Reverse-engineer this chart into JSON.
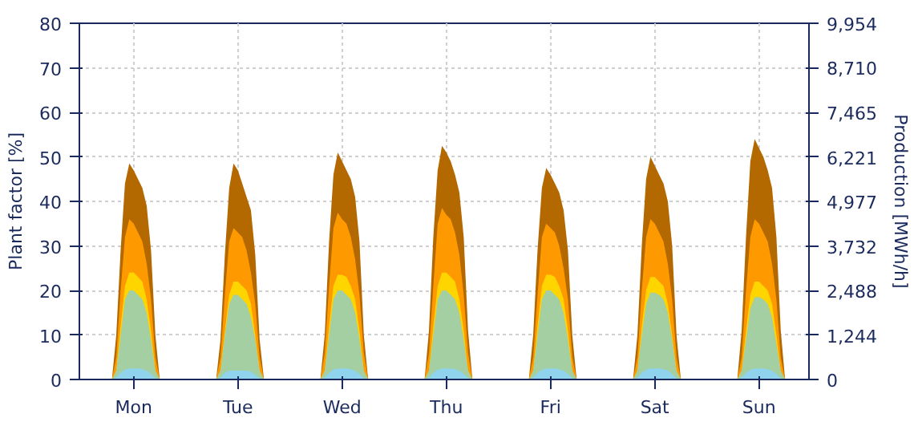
{
  "chart_data": {
    "type": "area",
    "ylabel": "Plant factor [%]",
    "y2label": "Production [MWh/h]",
    "categories": [
      null,
      null,
      null,
      null,
      null,
      null,
      null,
      null,
      null,
      null,
      null,
      null,
      "Mon",
      null,
      null,
      null,
      null,
      null,
      null,
      null,
      null,
      null,
      null,
      null,
      null,
      null,
      null,
      null,
      null,
      null,
      null,
      null,
      null,
      null,
      null,
      null,
      "Tue",
      null,
      null,
      null,
      null,
      null,
      null,
      null,
      null,
      null,
      null,
      null,
      null,
      null,
      null,
      null,
      null,
      null,
      null,
      null,
      null,
      null,
      null,
      null,
      "Wed",
      null,
      null,
      null,
      null,
      null,
      null,
      null,
      null,
      null,
      null,
      null,
      null,
      null,
      null,
      null,
      null,
      null,
      null,
      null,
      null,
      null,
      null,
      null,
      "Thu",
      null,
      null,
      null,
      null,
      null,
      null,
      null,
      null,
      null,
      null,
      null,
      null,
      null,
      null,
      null,
      null,
      null,
      null,
      null,
      null,
      null,
      null,
      null,
      "Fri",
      null,
      null,
      null,
      null,
      null,
      null,
      null,
      null,
      null,
      null,
      null,
      null,
      null,
      null,
      null,
      null,
      null,
      null,
      null,
      null,
      null,
      null,
      null,
      "Sat",
      null,
      null,
      null,
      null,
      null,
      null,
      null,
      null,
      null,
      null,
      null,
      null,
      null,
      null,
      null,
      null,
      null,
      null,
      null,
      null,
      null,
      null,
      null,
      "Sun",
      null,
      null,
      null,
      null,
      null,
      null,
      null,
      null,
      null,
      null,
      null
    ],
    "ylim": [
      0,
      80
    ],
    "yticks": [
      0,
      10,
      20,
      30,
      40,
      50,
      60,
      70,
      80
    ],
    "y2lim": [
      0,
      9954
    ],
    "y2ticks": [
      0,
      {
        "value": 1244,
        "label": "1,244"
      },
      {
        "value": 2488,
        "label": "2,488"
      },
      {
        "value": 3732,
        "label": "3,732"
      },
      {
        "value": 4977,
        "label": "4,977"
      },
      {
        "value": 6221,
        "label": "6,221"
      },
      {
        "value": 7465,
        "label": "7,465"
      },
      {
        "value": 8710,
        "label": "8,710"
      },
      {
        "value": 9954,
        "label": "9,954"
      }
    ],
    "grid": true,
    "series": [
      {
        "color": "#b36800",
        "values": [
          0,
          0,
          0,
          0,
          0,
          0,
          0,
          0,
          10,
          29,
          44,
          48.5,
          47,
          45,
          43,
          39,
          29,
          10,
          0,
          0,
          0,
          0,
          0,
          0,
          0,
          0,
          0,
          0,
          0,
          0,
          0,
          0,
          9,
          28,
          43,
          48.5,
          47,
          44,
          41,
          38,
          28,
          9,
          0,
          0,
          0,
          0,
          0,
          0,
          0,
          0,
          0,
          0,
          0,
          0,
          0,
          0,
          10,
          31,
          46,
          51,
          49,
          47,
          45,
          41,
          31,
          10,
          0,
          0,
          0,
          0,
          0,
          0,
          0,
          0,
          0,
          0,
          0,
          0,
          0,
          0,
          11,
          32,
          47,
          52.5,
          51,
          49,
          46,
          42,
          32,
          11,
          0,
          0,
          0,
          0,
          0,
          0,
          0,
          0,
          0,
          0,
          0,
          0,
          0,
          0,
          10,
          29,
          43,
          47.5,
          46,
          44,
          42,
          38,
          29,
          10,
          0,
          0,
          0,
          0,
          0,
          0,
          0,
          0,
          0,
          0,
          0,
          0,
          0,
          0,
          10,
          30,
          45,
          50,
          48,
          46,
          44,
          40,
          30,
          10,
          0,
          0,
          0,
          0,
          0,
          0,
          0,
          0,
          0,
          0,
          0,
          0,
          0,
          0,
          11,
          32,
          49,
          54,
          52,
          50,
          47,
          43,
          32,
          11,
          0,
          0,
          0,
          0,
          0,
          0
        ]
      },
      {
        "color": "#ff9900",
        "values": [
          0,
          0,
          0,
          0,
          0,
          0,
          0,
          0,
          5,
          20,
          32,
          36,
          35,
          33,
          31,
          26,
          18,
          5,
          0,
          0,
          0,
          0,
          0,
          0,
          0,
          0,
          0,
          0,
          0,
          0,
          0,
          0,
          5,
          19,
          31,
          34,
          33,
          32,
          29,
          24,
          17,
          5,
          0,
          0,
          0,
          0,
          0,
          0,
          0,
          0,
          0,
          0,
          0,
          0,
          0,
          0,
          6,
          21,
          34,
          37.5,
          36,
          35,
          32,
          27,
          19,
          6,
          0,
          0,
          0,
          0,
          0,
          0,
          0,
          0,
          0,
          0,
          0,
          0,
          0,
          0,
          6,
          21,
          35,
          38.5,
          37,
          36,
          33,
          28,
          19,
          6,
          0,
          0,
          0,
          0,
          0,
          0,
          0,
          0,
          0,
          0,
          0,
          0,
          0,
          0,
          5,
          19,
          32,
          35,
          34,
          33,
          30,
          25,
          18,
          5,
          0,
          0,
          0,
          0,
          0,
          0,
          0,
          0,
          0,
          0,
          0,
          0,
          0,
          0,
          5,
          20,
          32,
          36,
          35,
          33,
          31,
          26,
          18,
          5,
          0,
          0,
          0,
          0,
          0,
          0,
          0,
          0,
          0,
          0,
          0,
          0,
          0,
          0,
          5,
          20,
          32,
          36,
          35,
          33,
          31,
          26,
          18,
          5,
          0,
          0,
          0,
          0,
          0,
          0
        ]
      },
      {
        "color": "#ffd500",
        "values": [
          0,
          0,
          0,
          0,
          0,
          0,
          0,
          0,
          2,
          12,
          21,
          24,
          24,
          23,
          22,
          18,
          11,
          2,
          0,
          0,
          0,
          0,
          0,
          0,
          0,
          0,
          0,
          0,
          0,
          0,
          0,
          0,
          2,
          11,
          19,
          22,
          22,
          21,
          20,
          17,
          10,
          2,
          0,
          0,
          0,
          0,
          0,
          0,
          0,
          0,
          0,
          0,
          0,
          0,
          0,
          0,
          2,
          12,
          21,
          23.5,
          23.5,
          23,
          21,
          18,
          11,
          2,
          0,
          0,
          0,
          0,
          0,
          0,
          0,
          0,
          0,
          0,
          0,
          0,
          0,
          0,
          2,
          12,
          21,
          24,
          24,
          23,
          22,
          18,
          11,
          2,
          0,
          0,
          0,
          0,
          0,
          0,
          0,
          0,
          0,
          0,
          0,
          0,
          0,
          0,
          2,
          12,
          21,
          23.5,
          23.5,
          23,
          21,
          18,
          11,
          2,
          0,
          0,
          0,
          0,
          0,
          0,
          0,
          0,
          0,
          0,
          0,
          0,
          0,
          0,
          2,
          12,
          20,
          23,
          23,
          22,
          21,
          17,
          10,
          2,
          0,
          0,
          0,
          0,
          0,
          0,
          0,
          0,
          0,
          0,
          0,
          0,
          0,
          0,
          2,
          11,
          19,
          22,
          22,
          21,
          20,
          17,
          10,
          2,
          0,
          0,
          0,
          0,
          0,
          0
        ]
      },
      {
        "color": "#a3cfa3",
        "values": [
          0,
          0,
          0,
          0,
          0,
          0,
          0,
          0,
          2,
          10,
          18,
          20,
          20,
          19,
          18,
          15,
          9,
          2,
          0,
          0,
          0,
          0,
          0,
          0,
          0,
          0,
          0,
          0,
          0,
          0,
          0,
          0,
          2,
          10,
          17,
          19,
          19,
          18,
          17,
          14,
          9,
          2,
          0,
          0,
          0,
          0,
          0,
          0,
          0,
          0,
          0,
          0,
          0,
          0,
          0,
          0,
          2,
          10,
          18,
          20,
          20,
          19,
          18,
          15,
          9,
          2,
          0,
          0,
          0,
          0,
          0,
          0,
          0,
          0,
          0,
          0,
          0,
          0,
          0,
          0,
          2,
          10,
          18,
          20,
          20,
          19,
          18,
          15,
          9,
          2,
          0,
          0,
          0,
          0,
          0,
          0,
          0,
          0,
          0,
          0,
          0,
          0,
          0,
          0,
          2,
          10,
          18,
          20,
          20,
          19,
          18,
          15,
          9,
          2,
          0,
          0,
          0,
          0,
          0,
          0,
          0,
          0,
          0,
          0,
          0,
          0,
          0,
          0,
          2,
          10,
          17,
          19.5,
          19.5,
          19,
          18,
          15,
          9,
          2,
          0,
          0,
          0,
          0,
          0,
          0,
          0,
          0,
          0,
          0,
          0,
          0,
          0,
          0,
          2,
          9,
          16,
          18.5,
          18.5,
          18,
          17,
          14,
          8,
          2,
          0,
          0,
          0,
          0,
          0,
          0
        ]
      },
      {
        "color": "#8fd3ec",
        "values": [
          0,
          0,
          0,
          0,
          0,
          0,
          0,
          0,
          0.5,
          1.5,
          2.2,
          2.5,
          2.5,
          2.5,
          2.3,
          2,
          1.2,
          0.3,
          0,
          0,
          0,
          0,
          0,
          0,
          0,
          0,
          0,
          0,
          0,
          0,
          0,
          0,
          0.5,
          1.5,
          2,
          2,
          2,
          2,
          2,
          1.8,
          1,
          0.3,
          0,
          0,
          0,
          0,
          0,
          0,
          0,
          0,
          0,
          0,
          0,
          0,
          0,
          0,
          0.5,
          1.5,
          2.2,
          2.5,
          2.5,
          2.5,
          2.3,
          2,
          1.2,
          0.3,
          0,
          0,
          0,
          0,
          0,
          0,
          0,
          0,
          0,
          0,
          0,
          0,
          0,
          0,
          0.5,
          1.5,
          2.2,
          2.5,
          2.5,
          2.5,
          2.3,
          2,
          1.2,
          0.3,
          0,
          0,
          0,
          0,
          0,
          0,
          0,
          0,
          0,
          0,
          0,
          0,
          0,
          0,
          0.5,
          1.5,
          2.2,
          2.5,
          2.5,
          2.5,
          2.3,
          2,
          1.2,
          0.3,
          0,
          0,
          0,
          0,
          0,
          0,
          0,
          0,
          0,
          0,
          0,
          0,
          0,
          0,
          0.5,
          1.5,
          2.2,
          2.5,
          2.5,
          2.5,
          2.3,
          2,
          1.2,
          0.3,
          0,
          0,
          0,
          0,
          0,
          0,
          0,
          0,
          0,
          0,
          0,
          0,
          0,
          0,
          0.5,
          1.5,
          2.2,
          2.5,
          2.5,
          2.5,
          2.3,
          2,
          1.2,
          0.3,
          0,
          0,
          0,
          0,
          0,
          0
        ]
      }
    ]
  }
}
